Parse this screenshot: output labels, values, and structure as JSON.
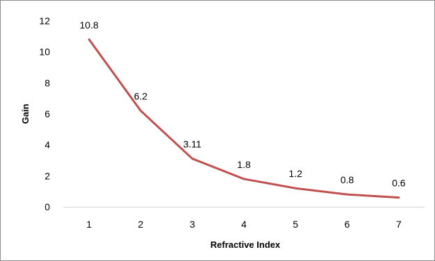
{
  "chart_data": {
    "type": "line",
    "title": "",
    "xlabel": "Refractive Index",
    "ylabel": "Gain",
    "x": [
      1,
      2,
      3,
      4,
      5,
      6,
      7
    ],
    "x_tick_labels": [
      "1",
      "2",
      "3",
      "4",
      "5",
      "6",
      "7"
    ],
    "y_tick_labels": [
      "0",
      "2",
      "4",
      "6",
      "8",
      "10",
      "12"
    ],
    "ylim": [
      0,
      12
    ],
    "grid": false,
    "legend": "none",
    "series": [
      {
        "values": [
          10.8,
          6.2,
          3.11,
          1.8,
          1.2,
          0.8,
          0.6
        ],
        "data_labels": [
          "10.8",
          "6.2",
          "3.11",
          "1.8",
          "1.2",
          "0.8",
          "0.6"
        ],
        "color": "#c0504d"
      }
    ],
    "axis_color": "#d9d9d9"
  }
}
